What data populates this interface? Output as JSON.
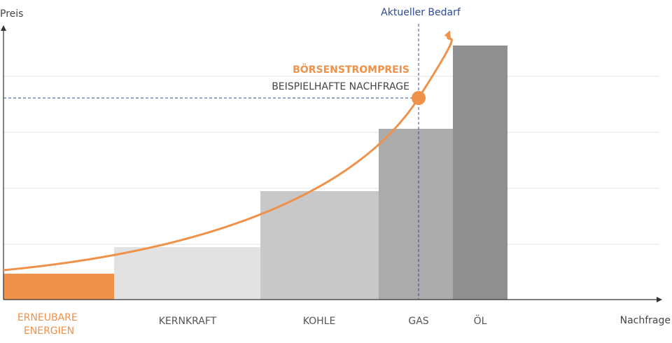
{
  "axes": {
    "y_label": "Preis",
    "x_label": "Nachfrage"
  },
  "demand_label": "Aktueller Bedarf",
  "curve": {
    "title": "BÖRSENSTROMPREIS",
    "subtitle": "BEISPIELHAFTE NACHFRAGE"
  },
  "categories": [
    [
      "ERNEUBARE",
      "ENERGIEN"
    ],
    [
      "KERNKRAFT"
    ],
    [
      "KOHLE"
    ],
    [
      "GAS"
    ],
    [
      "ÖL"
    ]
  ]
}
